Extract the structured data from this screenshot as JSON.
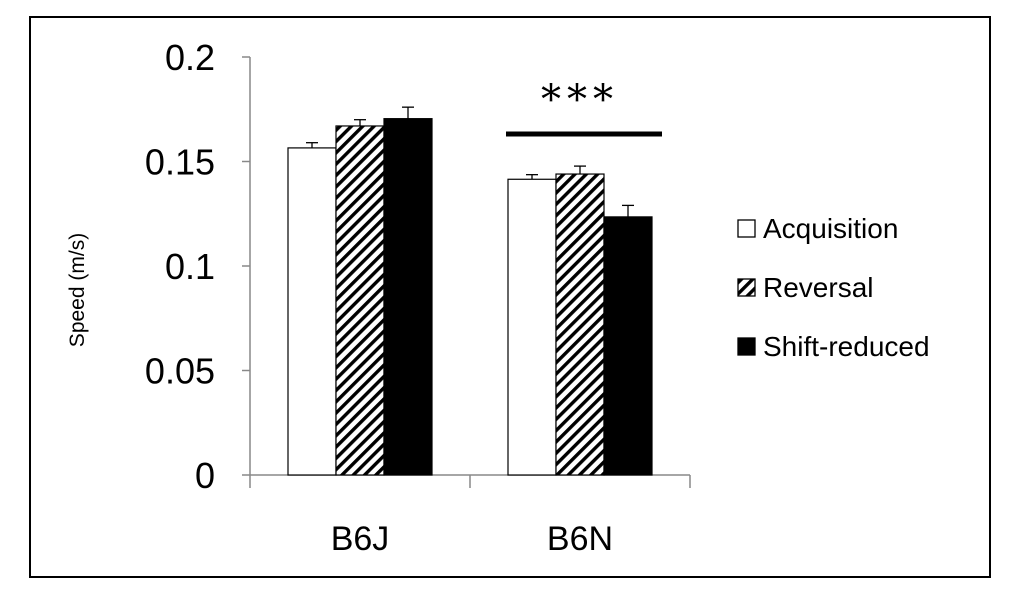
{
  "chart_data": {
    "type": "bar",
    "categories": [
      "B6J",
      "B6N"
    ],
    "series": [
      {
        "name": "Acquisition",
        "values": [
          0.1565,
          0.1415
        ],
        "errors": [
          0.0025,
          0.0022
        ],
        "fill": "open",
        "color": "#ffffff"
      },
      {
        "name": "Reversal",
        "values": [
          0.167,
          0.144
        ],
        "errors": [
          0.003,
          0.0038
        ],
        "fill": "hatched",
        "color": "#000000"
      },
      {
        "name": "Shift-reduced",
        "values": [
          0.1705,
          0.1235
        ],
        "errors": [
          0.0055,
          0.0055
        ],
        "fill": "solid",
        "color": "#000000"
      }
    ],
    "ylabel": "Speed (m/s)",
    "xlabel": "",
    "ylim": [
      0,
      0.2
    ],
    "yticks": [
      "0",
      "0.05",
      "0.1",
      "0.15",
      "0.2"
    ],
    "legend_position": "right",
    "grid": false,
    "annotation": {
      "text": "***",
      "category": "B6N"
    }
  }
}
